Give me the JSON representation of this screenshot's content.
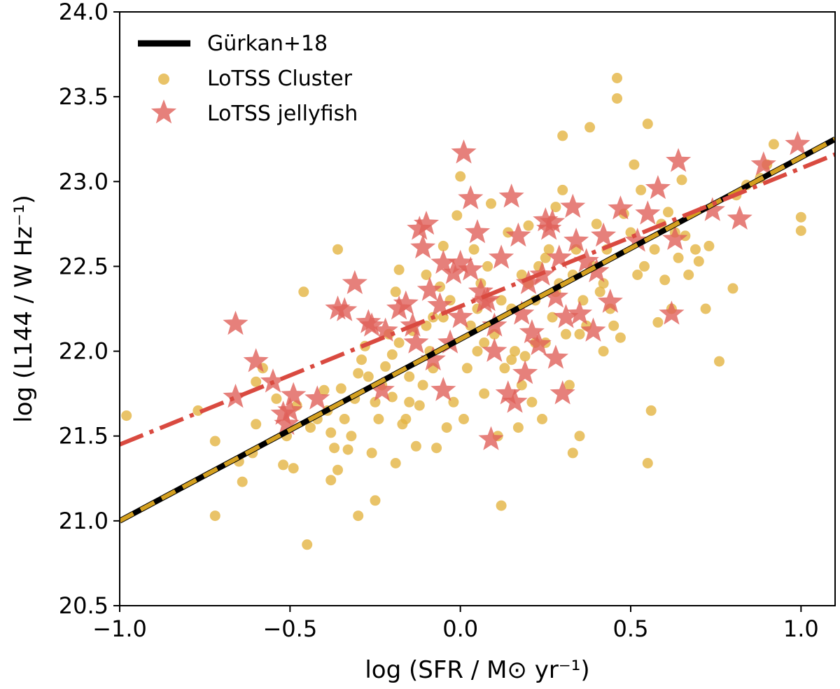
{
  "chart_data": {
    "type": "scatter",
    "title": "",
    "xlabel": "log (SFR / M⊙ yr⁻¹)",
    "ylabel": "log (L144 / W Hz⁻¹)",
    "xlim": [
      -1.0,
      1.1
    ],
    "ylim": [
      20.5,
      24.0
    ],
    "x_ticks": [
      -1.0,
      -0.5,
      0.0,
      0.5,
      1.0
    ],
    "x_tick_labels": [
      "−1.0",
      "−0.5",
      "0.0",
      "0.5",
      "1.0"
    ],
    "y_ticks": [
      20.5,
      21.0,
      21.5,
      22.0,
      22.5,
      23.0,
      23.5,
      24.0
    ],
    "y_tick_labels": [
      "20.5",
      "21.0",
      "21.5",
      "22.0",
      "22.5",
      "23.0",
      "23.5",
      "24.0"
    ],
    "legend_position": "top-left",
    "colors": {
      "cluster": "#e3b442",
      "jellyfish": "#e0605a",
      "gurkan": "#000000",
      "cluster_fit": "#d4a020",
      "jellyfish_fit": "#d94a40"
    },
    "legend": [
      {
        "label": "Gürkan+18",
        "kind": "line"
      },
      {
        "label": "LoTSS Cluster",
        "kind": "dot"
      },
      {
        "label": "LoTSS jellyfish",
        "kind": "star"
      }
    ],
    "lines": [
      {
        "name": "Gürkan+18",
        "style": "solid",
        "x": [
          -1.0,
          1.1
        ],
        "y": [
          21.0,
          23.25
        ]
      },
      {
        "name": "LoTSS Cluster fit",
        "style": "dashed",
        "x": [
          -1.0,
          1.1
        ],
        "y": [
          21.0,
          23.25
        ]
      },
      {
        "name": "LoTSS jellyfish fit",
        "style": "dashdot",
        "x": [
          -1.0,
          1.1
        ],
        "y": [
          21.45,
          23.16
        ]
      }
    ],
    "series": [
      {
        "name": "LoTSS Cluster",
        "marker": "circle",
        "points": [
          [
            -0.98,
            21.62
          ],
          [
            -0.77,
            21.65
          ],
          [
            -0.72,
            21.47
          ],
          [
            -0.72,
            21.03
          ],
          [
            -0.65,
            21.35
          ],
          [
            -0.64,
            21.23
          ],
          [
            -0.61,
            21.4
          ],
          [
            -0.6,
            21.57
          ],
          [
            -0.6,
            21.82
          ],
          [
            -0.58,
            21.9
          ],
          [
            -0.54,
            21.72
          ],
          [
            -0.52,
            21.33
          ],
          [
            -0.51,
            21.5
          ],
          [
            -0.49,
            21.31
          ],
          [
            -0.48,
            21.68
          ],
          [
            -0.46,
            22.35
          ],
          [
            -0.45,
            20.86
          ],
          [
            -0.44,
            21.55
          ],
          [
            -0.42,
            21.6
          ],
          [
            -0.4,
            21.77
          ],
          [
            -0.39,
            21.65
          ],
          [
            -0.38,
            21.24
          ],
          [
            -0.38,
            21.52
          ],
          [
            -0.37,
            21.43
          ],
          [
            -0.36,
            21.3
          ],
          [
            -0.36,
            22.6
          ],
          [
            -0.35,
            21.78
          ],
          [
            -0.34,
            21.6
          ],
          [
            -0.33,
            21.42
          ],
          [
            -0.32,
            21.5
          ],
          [
            -0.31,
            21.72
          ],
          [
            -0.3,
            21.03
          ],
          [
            -0.3,
            21.87
          ],
          [
            -0.29,
            21.95
          ],
          [
            -0.28,
            22.03
          ],
          [
            -0.27,
            21.85
          ],
          [
            -0.26,
            21.4
          ],
          [
            -0.25,
            21.12
          ],
          [
            -0.24,
            21.6
          ],
          [
            -0.23,
            21.8
          ],
          [
            -0.22,
            21.91
          ],
          [
            -0.21,
            22.1
          ],
          [
            -0.2,
            21.73
          ],
          [
            -0.2,
            21.98
          ],
          [
            -0.19,
            21.34
          ],
          [
            -0.19,
            22.35
          ],
          [
            -0.18,
            22.48
          ],
          [
            -0.17,
            21.57
          ],
          [
            -0.16,
            21.6
          ],
          [
            -0.15,
            21.85
          ],
          [
            -0.14,
            22.12
          ],
          [
            -0.13,
            21.44
          ],
          [
            -0.12,
            21.68
          ],
          [
            -0.11,
            21.8
          ],
          [
            -0.1,
            22.45
          ],
          [
            -0.09,
            22.0
          ],
          [
            -0.08,
            21.9
          ],
          [
            -0.07,
            21.43
          ],
          [
            -0.06,
            22.38
          ],
          [
            -0.05,
            22.2
          ],
          [
            -0.04,
            21.55
          ],
          [
            -0.03,
            22.3
          ],
          [
            -0.02,
            21.7
          ],
          [
            -0.01,
            22.8
          ],
          [
            0.0,
            23.03
          ],
          [
            0.01,
            21.6
          ],
          [
            0.02,
            21.9
          ],
          [
            0.03,
            22.15
          ],
          [
            0.04,
            22.6
          ],
          [
            0.05,
            22.0
          ],
          [
            0.06,
            22.4
          ],
          [
            0.07,
            21.75
          ],
          [
            0.08,
            22.5
          ],
          [
            0.09,
            22.87
          ],
          [
            0.1,
            22.1
          ],
          [
            0.11,
            21.5
          ],
          [
            0.12,
            21.09
          ],
          [
            0.13,
            21.9
          ],
          [
            0.14,
            22.7
          ],
          [
            0.15,
            22.25
          ],
          [
            0.16,
            22.0
          ],
          [
            0.17,
            21.55
          ],
          [
            0.18,
            22.45
          ],
          [
            0.19,
            21.97
          ],
          [
            0.2,
            22.74
          ],
          [
            0.21,
            21.7
          ],
          [
            0.22,
            22.3
          ],
          [
            0.23,
            22.5
          ],
          [
            0.24,
            21.6
          ],
          [
            0.25,
            22.05
          ],
          [
            0.26,
            22.6
          ],
          [
            0.27,
            22.2
          ],
          [
            0.28,
            22.85
          ],
          [
            0.29,
            22.4
          ],
          [
            0.3,
            22.95
          ],
          [
            0.3,
            23.27
          ],
          [
            0.31,
            22.1
          ],
          [
            0.32,
            21.8
          ],
          [
            0.33,
            21.4
          ],
          [
            0.34,
            22.6
          ],
          [
            0.35,
            21.5
          ],
          [
            0.36,
            22.3
          ],
          [
            0.37,
            22.15
          ],
          [
            0.38,
            23.32
          ],
          [
            0.39,
            22.5
          ],
          [
            0.4,
            22.75
          ],
          [
            0.41,
            22.35
          ],
          [
            0.42,
            22.0
          ],
          [
            0.43,
            22.6
          ],
          [
            0.44,
            22.25
          ],
          [
            0.45,
            22.15
          ],
          [
            0.46,
            23.49
          ],
          [
            0.46,
            23.61
          ],
          [
            0.47,
            22.08
          ],
          [
            0.48,
            22.81
          ],
          [
            0.5,
            22.7
          ],
          [
            0.51,
            23.1
          ],
          [
            0.52,
            22.45
          ],
          [
            0.53,
            22.95
          ],
          [
            0.54,
            22.5
          ],
          [
            0.55,
            21.34
          ],
          [
            0.55,
            23.34
          ],
          [
            0.56,
            21.65
          ],
          [
            0.57,
            22.6
          ],
          [
            0.58,
            22.17
          ],
          [
            0.59,
            22.75
          ],
          [
            0.6,
            22.42
          ],
          [
            0.61,
            22.82
          ],
          [
            0.62,
            22.25
          ],
          [
            0.63,
            22.7
          ],
          [
            0.64,
            22.55
          ],
          [
            0.65,
            23.01
          ],
          [
            0.66,
            22.68
          ],
          [
            0.67,
            22.45
          ],
          [
            0.69,
            22.6
          ],
          [
            0.7,
            22.53
          ],
          [
            0.72,
            22.25
          ],
          [
            0.73,
            22.62
          ],
          [
            0.76,
            21.94
          ],
          [
            0.8,
            22.37
          ],
          [
            0.81,
            22.92
          ],
          [
            0.84,
            22.98
          ],
          [
            0.88,
            23.02
          ],
          [
            0.9,
            23.1
          ],
          [
            0.92,
            23.22
          ],
          [
            1.0,
            22.79
          ],
          [
            1.0,
            22.71
          ],
          [
            -0.15,
            21.7
          ],
          [
            -0.1,
            22.15
          ],
          [
            0.15,
            21.95
          ],
          [
            0.2,
            22.4
          ],
          [
            0.25,
            22.55
          ],
          [
            -0.05,
            22.62
          ],
          [
            0.07,
            22.05
          ],
          [
            0.35,
            22.1
          ],
          [
            0.42,
            22.4
          ],
          [
            -0.18,
            22.05
          ],
          [
            0.12,
            22.3
          ],
          [
            0.18,
            21.8
          ],
          [
            -0.25,
            21.7
          ],
          [
            0.05,
            22.25
          ],
          [
            0.28,
            22.35
          ],
          [
            -0.08,
            22.2
          ],
          [
            0.33,
            22.45
          ],
          [
            0.22,
            22.05
          ]
        ]
      },
      {
        "name": "LoTSS jellyfish",
        "marker": "star",
        "points": [
          [
            -0.66,
            22.16
          ],
          [
            -0.66,
            21.73
          ],
          [
            -0.6,
            21.94
          ],
          [
            -0.55,
            21.82
          ],
          [
            -0.52,
            21.63
          ],
          [
            -0.51,
            21.57
          ],
          [
            -0.5,
            21.65
          ],
          [
            -0.49,
            21.74
          ],
          [
            -0.42,
            21.72
          ],
          [
            -0.34,
            22.24
          ],
          [
            -0.31,
            22.4
          ],
          [
            -0.26,
            22.15
          ],
          [
            -0.23,
            21.77
          ],
          [
            -0.22,
            22.12
          ],
          [
            -0.18,
            22.25
          ],
          [
            -0.16,
            22.28
          ],
          [
            -0.14,
            22.15
          ],
          [
            -0.13,
            22.05
          ],
          [
            -0.12,
            22.72
          ],
          [
            -0.11,
            22.61
          ],
          [
            -0.1,
            22.75
          ],
          [
            -0.09,
            22.36
          ],
          [
            -0.08,
            21.95
          ],
          [
            -0.05,
            21.77
          ],
          [
            -0.05,
            22.52
          ],
          [
            -0.03,
            22.05
          ],
          [
            -0.02,
            22.46
          ],
          [
            0.0,
            22.2
          ],
          [
            0.0,
            22.52
          ],
          [
            0.01,
            23.17
          ],
          [
            0.03,
            22.9
          ],
          [
            0.03,
            22.48
          ],
          [
            0.05,
            22.7
          ],
          [
            0.06,
            22.35
          ],
          [
            0.07,
            22.29
          ],
          [
            0.09,
            21.48
          ],
          [
            0.1,
            22.15
          ],
          [
            0.12,
            22.55
          ],
          [
            0.14,
            21.75
          ],
          [
            0.15,
            22.91
          ],
          [
            0.16,
            21.7
          ],
          [
            0.17,
            22.68
          ],
          [
            0.18,
            22.22
          ],
          [
            0.2,
            22.4
          ],
          [
            0.21,
            22.11
          ],
          [
            0.23,
            22.04
          ],
          [
            0.24,
            22.45
          ],
          [
            0.25,
            22.77
          ],
          [
            0.26,
            22.72
          ],
          [
            0.27,
            22.76
          ],
          [
            0.28,
            22.32
          ],
          [
            0.29,
            22.55
          ],
          [
            0.3,
            21.75
          ],
          [
            0.31,
            22.2
          ],
          [
            0.33,
            22.85
          ],
          [
            0.34,
            22.65
          ],
          [
            0.35,
            22.22
          ],
          [
            0.37,
            22.53
          ],
          [
            0.39,
            22.12
          ],
          [
            0.4,
            22.47
          ],
          [
            0.42,
            22.68
          ],
          [
            0.44,
            22.29
          ],
          [
            0.47,
            22.84
          ],
          [
            0.52,
            22.65
          ],
          [
            0.55,
            22.81
          ],
          [
            0.58,
            22.96
          ],
          [
            0.62,
            22.22
          ],
          [
            0.63,
            22.66
          ],
          [
            0.64,
            23.12
          ],
          [
            0.74,
            22.83
          ],
          [
            0.82,
            22.78
          ],
          [
            0.89,
            23.1
          ],
          [
            0.99,
            23.22
          ],
          [
            -0.36,
            22.25
          ],
          [
            -0.27,
            22.17
          ],
          [
            -0.06,
            22.27
          ],
          [
            0.1,
            22.0
          ],
          [
            0.19,
            21.87
          ],
          [
            0.28,
            21.96
          ],
          [
            0.08,
            22.3
          ]
        ]
      }
    ]
  }
}
